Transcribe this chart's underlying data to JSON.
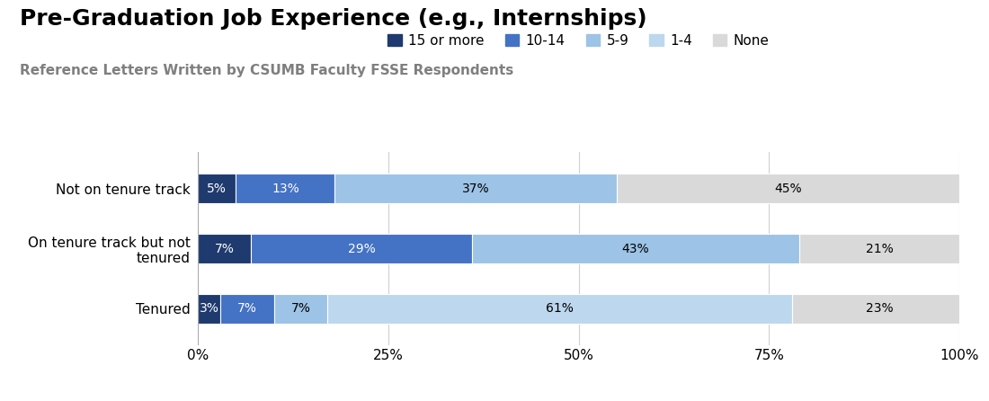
{
  "title": "Pre-Graduation Job Experience (e.g., Internships)",
  "subtitle": "Reference Letters Written by CSUMB Faculty FSSE Respondents",
  "categories": [
    "Not on tenure track",
    "On tenure track but not\ntenured",
    "Tenured"
  ],
  "legend_labels": [
    "15 or more",
    "10-14",
    "5-9",
    "1-4",
    "None"
  ],
  "colors": [
    "#1e3a6e",
    "#4472c4",
    "#9dc3e6",
    "#bdd7ee",
    "#d9d9d9"
  ],
  "data": [
    [
      5,
      13,
      37,
      0,
      45
    ],
    [
      7,
      29,
      43,
      0,
      21
    ],
    [
      3,
      7,
      7,
      61,
      23
    ]
  ],
  "bar_labels": [
    [
      "5%",
      "13%",
      "37%",
      "",
      "45%"
    ],
    [
      "7%",
      "29%",
      "43%",
      "",
      "21%"
    ],
    [
      "3%",
      "7%",
      "7%",
      "61%",
      "23%"
    ]
  ],
  "label_colors": [
    [
      "white",
      "white",
      "black",
      "",
      "black"
    ],
    [
      "white",
      "white",
      "black",
      "",
      "black"
    ],
    [
      "white",
      "white",
      "black",
      "black",
      "black"
    ]
  ],
  "xlim": [
    0,
    100
  ],
  "xticks": [
    0,
    25,
    50,
    75,
    100
  ],
  "xticklabels": [
    "0%",
    "25%",
    "50%",
    "75%",
    "100%"
  ],
  "background_color": "#ffffff",
  "title_fontsize": 18,
  "subtitle_fontsize": 11,
  "label_fontsize": 10,
  "tick_fontsize": 11,
  "bar_height": 0.5
}
